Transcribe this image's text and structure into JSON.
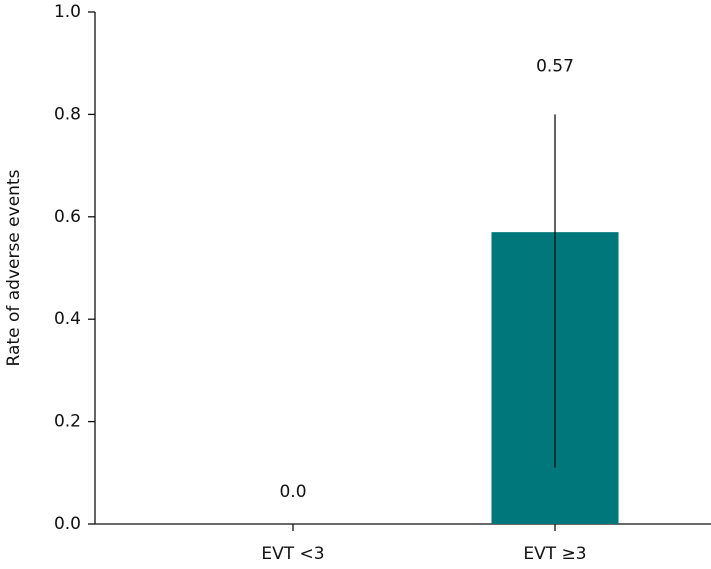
{
  "chart_data": {
    "type": "bar",
    "y_label": "Rate of adverse events",
    "categories": [
      "EVT <3",
      "EVT ≥3"
    ],
    "values": [
      0.0,
      0.57
    ],
    "value_labels": [
      "0.0",
      "0.57"
    ],
    "ci_low": [
      null,
      0.11
    ],
    "ci_high": [
      null,
      0.8
    ],
    "color": "#00777a",
    "ylim": [
      0,
      1
    ],
    "yticks": [
      {
        "value": 0,
        "label": "0.0"
      },
      0.2,
      0.4,
      0.6,
      0.8,
      {
        "value": 1,
        "label": "1.0"
      }
    ]
  }
}
